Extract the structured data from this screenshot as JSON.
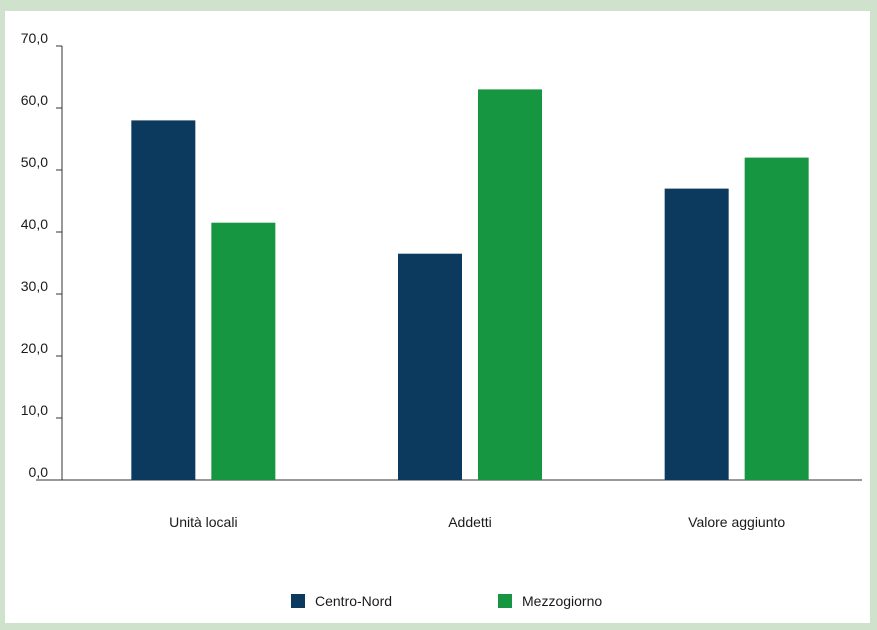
{
  "colors": {
    "background": "#cfe3cc",
    "panel": "#ffffff",
    "axis": "#333333"
  },
  "chart_data": {
    "type": "bar",
    "title": "",
    "xlabel": "",
    "ylabel": "",
    "ylim": [
      0,
      70
    ],
    "y_ticks": [
      "0,0",
      "10,0",
      "20,0",
      "30,0",
      "40,0",
      "50,0",
      "60,0",
      "70,0"
    ],
    "grid": false,
    "legend_position": "bottom",
    "categories": [
      "Unità locali",
      "Addetti",
      "Valore aggiunto"
    ],
    "series": [
      {
        "name": "Centro-Nord",
        "color": "#0b3a5e",
        "values": [
          58.0,
          36.5,
          47.0
        ]
      },
      {
        "name": "Mezzogiorno",
        "color": "#179642",
        "values": [
          41.5,
          63.0,
          52.0
        ]
      }
    ]
  }
}
